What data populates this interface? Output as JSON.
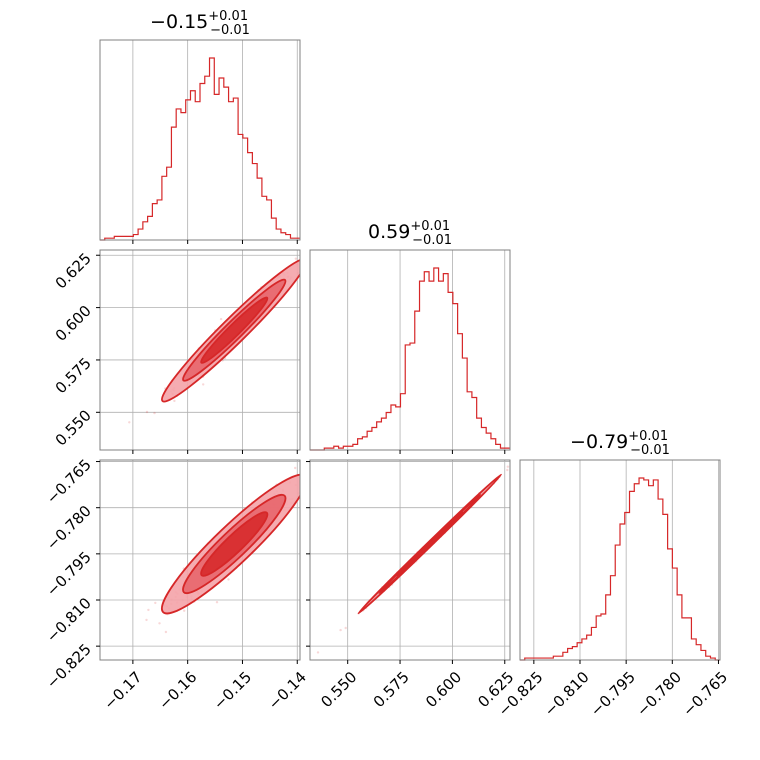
{
  "chart_data": {
    "type": "corner",
    "colors": {
      "main": "#d62728",
      "fill1": "#f4a3a8",
      "fill2": "#e8666d",
      "grid": "#b0b0b0",
      "frame": "#808080"
    },
    "params": [
      {
        "title_main": "−0.15",
        "title_sup": "+0.01",
        "title_sub": "−0.01",
        "range": [
          -0.176,
          -0.1395
        ],
        "mean": -0.1515,
        "sd": 0.0055,
        "ticks": [
          -0.17,
          -0.16,
          -0.15,
          -0.14
        ],
        "tick_labels": [
          "−0.17",
          "−0.16",
          "−0.15",
          "−0.14"
        ]
      },
      {
        "title_main": "0.59",
        "title_sup": "+0.01",
        "title_sub": "−0.01",
        "range": [
          0.532,
          0.6275
        ],
        "mean": 0.5892,
        "sd": 0.0142,
        "ticks": [
          0.55,
          0.575,
          0.6,
          0.625
        ],
        "tick_labels": [
          "0.550",
          "0.575",
          "0.600",
          "0.625"
        ]
      },
      {
        "title_main": "−0.79",
        "title_sup": "+0.01",
        "title_sub": "−0.01",
        "range": [
          -0.8295,
          -0.7645
        ],
        "mean": -0.7918,
        "sd": 0.0094,
        "ticks": [
          -0.825,
          -0.81,
          -0.795,
          -0.78,
          -0.765
        ],
        "tick_labels": [
          "−0.825",
          "−0.810",
          "−0.795",
          "−0.780",
          "−0.765"
        ]
      }
    ],
    "histograms": [
      [
        0,
        1,
        1,
        2,
        2,
        2,
        2,
        3,
        6,
        10,
        13,
        20,
        22,
        35,
        40,
        62,
        72,
        70,
        77,
        82,
        76,
        86,
        90,
        100,
        80,
        89,
        84,
        76,
        78,
        58,
        56,
        48,
        42,
        34,
        24,
        22,
        12,
        6,
        4,
        3,
        1,
        1
      ],
      [
        0,
        0,
        0,
        1,
        1,
        2,
        1,
        2,
        2,
        3,
        6,
        7,
        10,
        12,
        15,
        17,
        20,
        24,
        23,
        30,
        56,
        57,
        74,
        90,
        95,
        90,
        97,
        90,
        94,
        84,
        78,
        62,
        49,
        31,
        28,
        17,
        12,
        9,
        6,
        3,
        1,
        1
      ],
      [
        0,
        1,
        1,
        1,
        1,
        1,
        1,
        2,
        2,
        4,
        6,
        7,
        9,
        11,
        13,
        17,
        23,
        24,
        34,
        44,
        60,
        71,
        77,
        88,
        92,
        95,
        94,
        91,
        94,
        84,
        76,
        58,
        48,
        34,
        22,
        22,
        11,
        8,
        5,
        2,
        1,
        0
      ]
    ],
    "correlations": {
      "1-0": 0.97,
      "2-0": 0.93,
      "2-1": 0.999
    }
  }
}
